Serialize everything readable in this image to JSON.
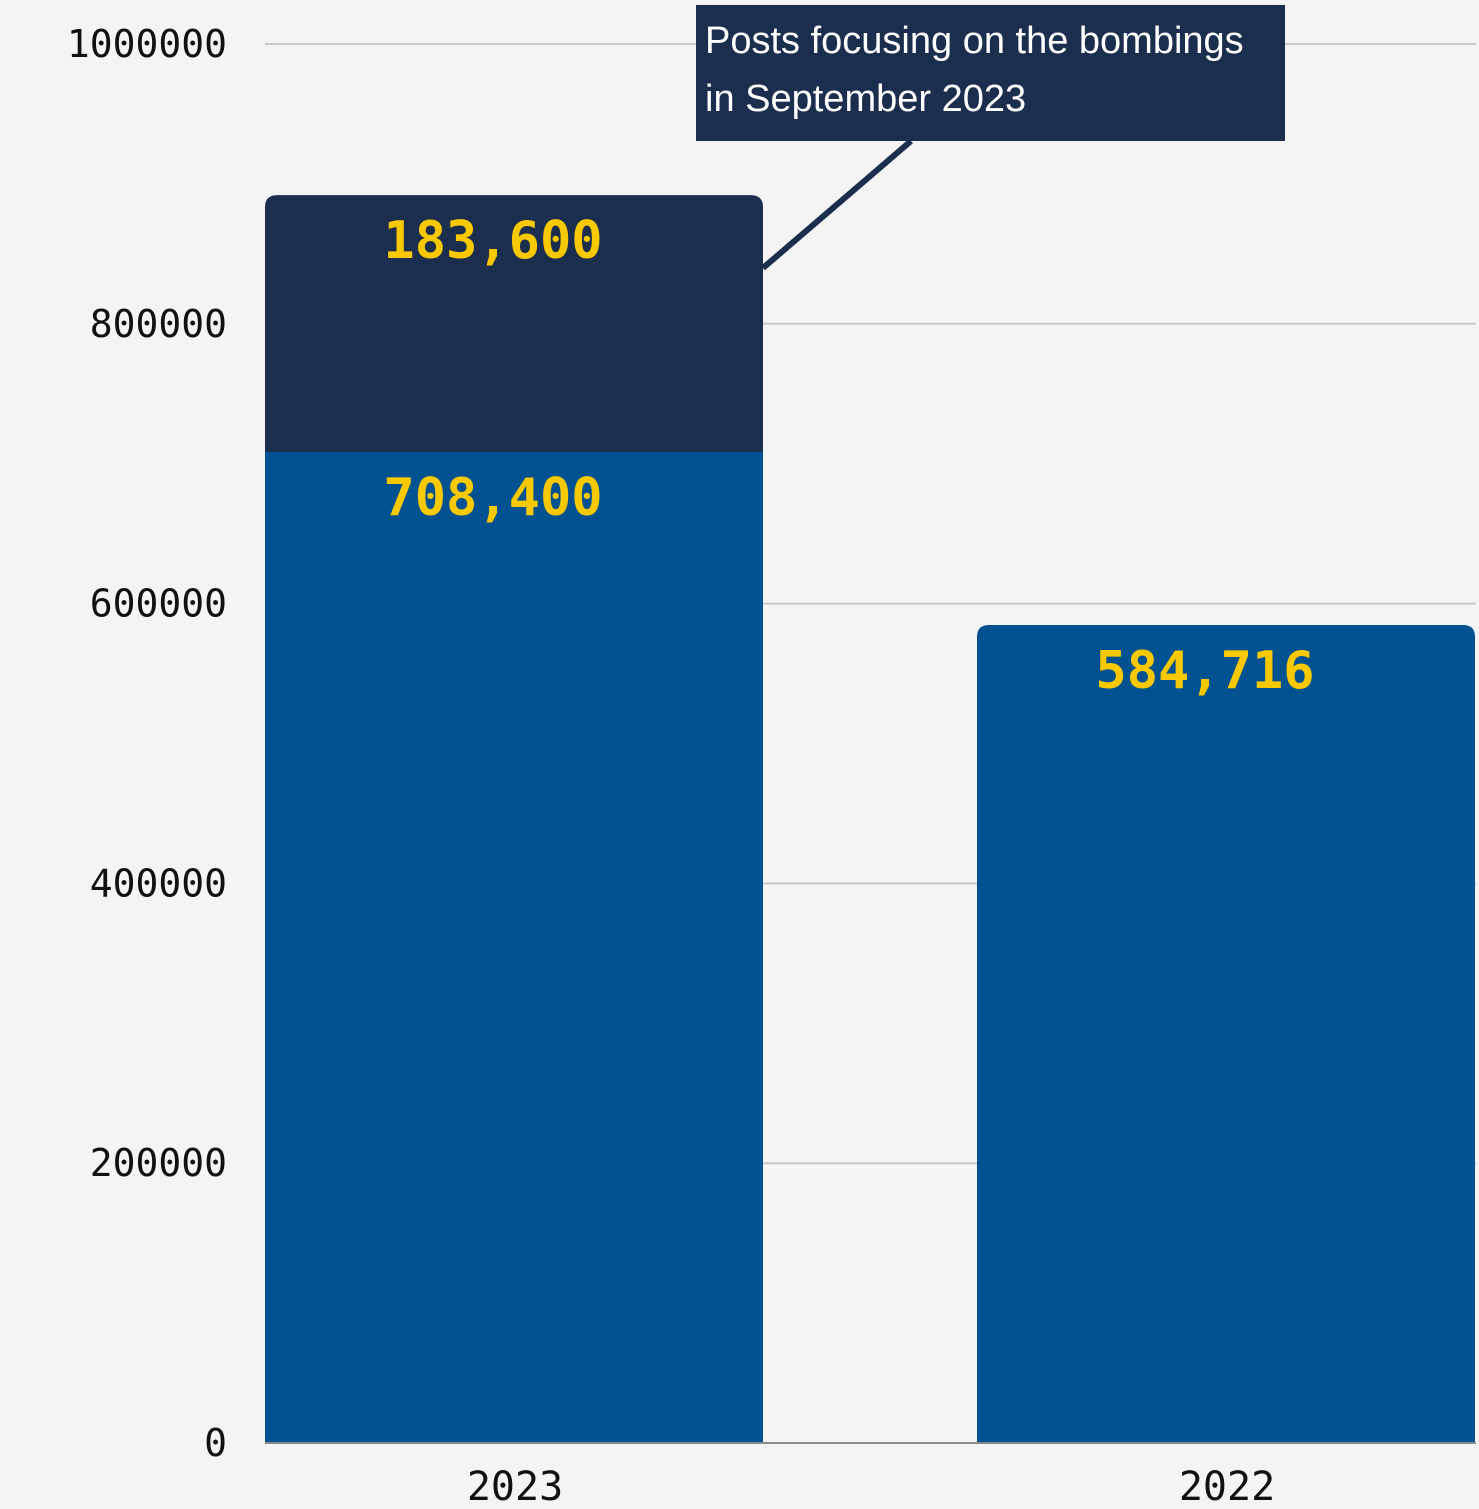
{
  "colors": {
    "background": "#f4f4f4",
    "gridline": "#c8c8c8",
    "axis_line": "#8a8a8a",
    "base_segment": "#025190",
    "top_segment": "#1c2e4e",
    "value_label": "#f8c800",
    "annotation_box": "#1c2e4e",
    "annotation_text": "#ffffff"
  },
  "chart_data": {
    "type": "bar",
    "stacked": true,
    "categories": [
      "2023",
      "2022"
    ],
    "series": [
      {
        "values": [
          708400,
          584716
        ],
        "labels": [
          "708,400",
          "584,716"
        ],
        "color": "#025190"
      },
      {
        "values": [
          183600,
          null
        ],
        "labels": [
          "183,600",
          ""
        ],
        "color": "#1c2e4e"
      }
    ],
    "ylim": [
      0,
      1000000
    ],
    "yticks": [
      0,
      200000,
      400000,
      600000,
      800000,
      1000000
    ],
    "ytick_labels": [
      "0",
      "200000",
      "400000",
      "600000",
      "800000",
      "1000000"
    ],
    "grid": true,
    "annotation": {
      "lines": [
        "Posts focusing on the bombings",
        "in September 2023"
      ],
      "points_to": {
        "category": "2023",
        "series_index": 1
      }
    }
  }
}
